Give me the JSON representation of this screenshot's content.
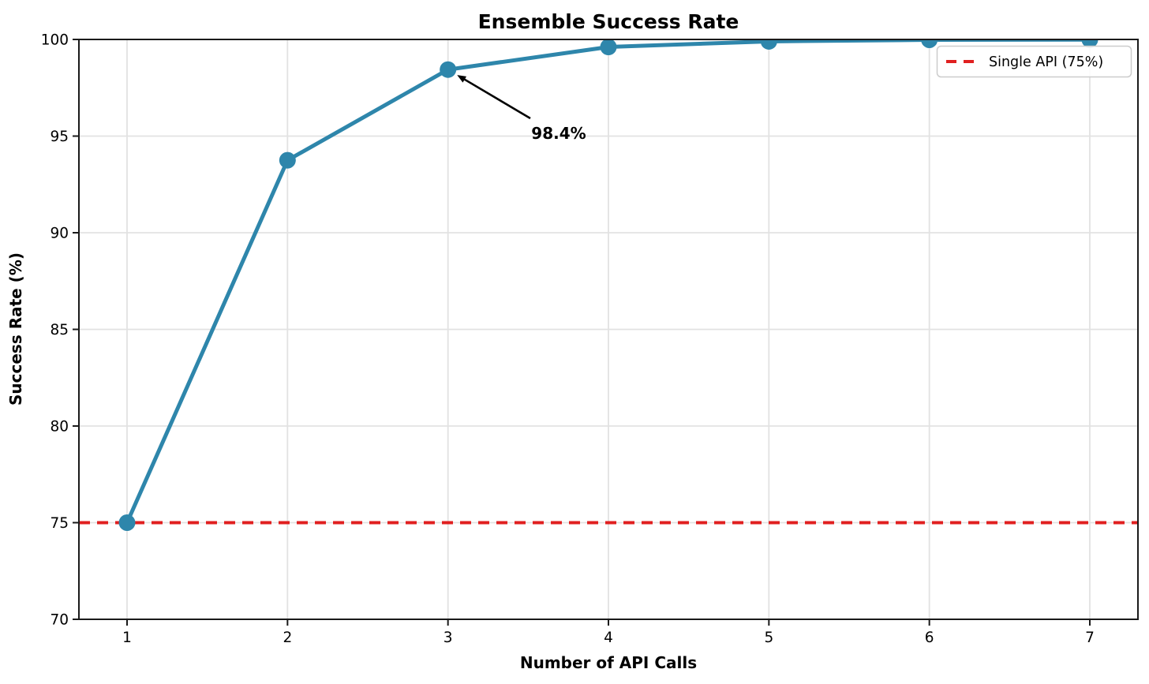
{
  "chart_data": {
    "type": "line",
    "title": "Ensemble Success Rate",
    "xlabel": "Number of API Calls",
    "ylabel": "Success Rate (%)",
    "x": [
      1,
      2,
      3,
      4,
      5,
      6,
      7
    ],
    "y": [
      75.0,
      93.75,
      98.44,
      99.61,
      99.9,
      99.98,
      99.99
    ],
    "xticks": [
      1,
      2,
      3,
      4,
      5,
      6,
      7
    ],
    "yticks": [
      70,
      75,
      80,
      85,
      90,
      95,
      100
    ],
    "xlim": [
      0.7,
      7.3
    ],
    "ylim": [
      70,
      100
    ],
    "grid": true,
    "grid_color": "#e2e2e2",
    "line_color": "#2E86AB",
    "marker": "circle",
    "reference_line": {
      "value": 75,
      "color": "#E02020",
      "style": "dashed",
      "label": "Single API (75%)"
    },
    "legend": {
      "position": "upper right",
      "entries": [
        {
          "label": "Single API (75%)",
          "color": "#E02020",
          "style": "dashed"
        }
      ]
    },
    "annotation": {
      "text": "98.4%",
      "target_x": 3,
      "target_y": 98.44,
      "arrow_color": "#000000"
    }
  }
}
